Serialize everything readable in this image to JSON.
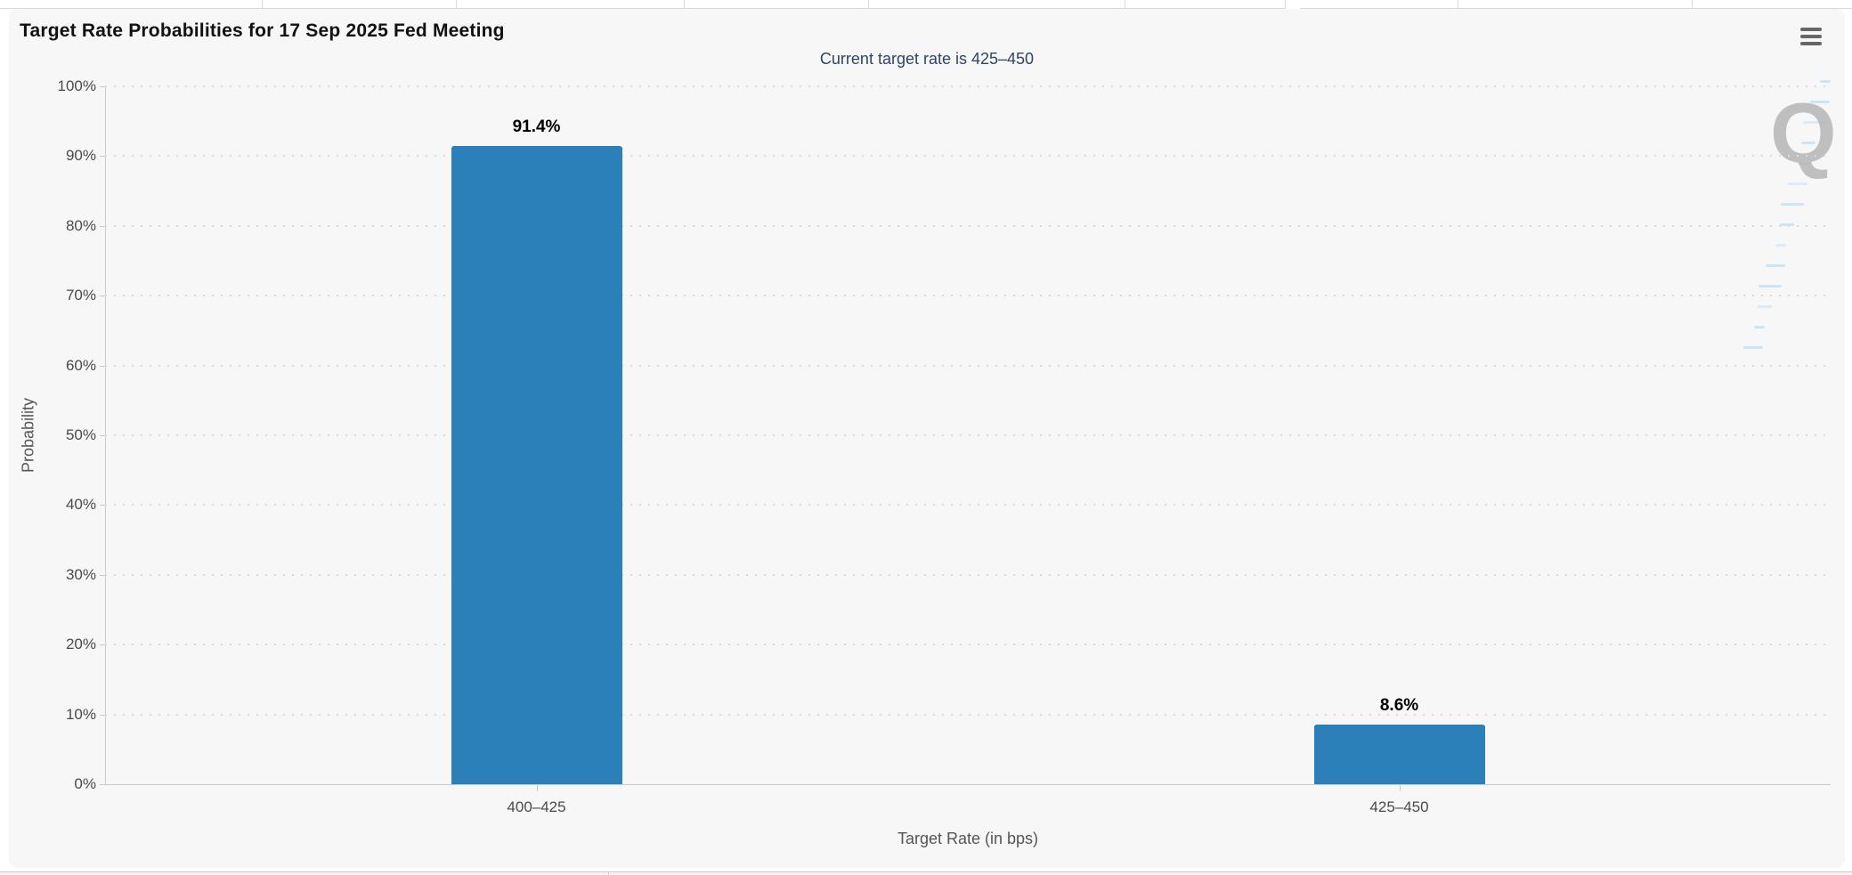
{
  "chart": {
    "title": "Target Rate Probabilities for 17 Sep 2025 Fed Meeting",
    "subtitle": "Current target rate is 425–450",
    "menu_icon": "hamburger-menu-icon",
    "watermark_letter": "Q",
    "accent_navy": "#2e4469",
    "panel_bg": "#f7f7f7"
  },
  "chart_data": {
    "type": "bar",
    "categories": [
      "400–425",
      "425–450"
    ],
    "values": [
      91.4,
      8.6
    ],
    "data_labels": [
      "91.4%",
      "8.6%"
    ],
    "title": "Target Rate Probabilities for 17 Sep 2025 Fed Meeting",
    "subtitle": "Current target rate is 425–450",
    "xlabel": "Target Rate (in bps)",
    "ylabel": "Probability",
    "ylim": [
      0,
      100
    ],
    "ytick_step": 10,
    "ytick_labels": [
      "0%",
      "10%",
      "20%",
      "30%",
      "40%",
      "50%",
      "60%",
      "70%",
      "80%",
      "90%",
      "100%"
    ],
    "bar_color": "#2b80b9",
    "grid": "dotted-horizontal",
    "legend": "none"
  }
}
